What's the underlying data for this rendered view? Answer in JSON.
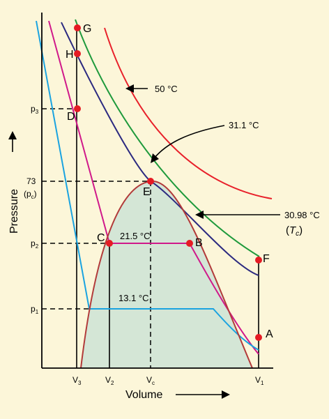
{
  "axes": {
    "x_label": "Volume",
    "y_label": "Pressure",
    "x_ticks": {
      "v3": "V",
      "v3_sub": "3",
      "v2": "V",
      "v2_sub": "2",
      "vc": "V",
      "vc_sub": "c",
      "v1": "V",
      "v1_sub": "1"
    },
    "y_ticks": {
      "p3": "p",
      "p3_sub": "3",
      "pc_value": "73",
      "pc_open": "(p",
      "pc_sub": "c",
      "pc_close": ")",
      "p2": "p",
      "p2_sub": "2",
      "p1": "p",
      "p1_sub": "1"
    }
  },
  "isotherms": {
    "t50": "50 °C",
    "t31_1": "31.1 °C",
    "t30_98": "30.98 °C",
    "tc_open": "(",
    "tc_symbol": "T",
    "tc_sub": "c",
    "tc_close": ")",
    "t21_5": "21.5 °C",
    "t13_1": "13.1 °C"
  },
  "points": [
    "G",
    "H",
    "D",
    "E",
    "B",
    "C",
    "F",
    "A"
  ],
  "colors": {
    "background": "#fcf6d9",
    "dome_fill": "#d4e6d6",
    "red_curve": "#e8202a",
    "green_curve": "#1f9a3c",
    "navy_curve": "#2c2a80",
    "magenta_curve": "#d0198a",
    "cyan_curve": "#1aa3e0",
    "dome_outline": "#b23a3a",
    "point": "#e51b24"
  }
}
